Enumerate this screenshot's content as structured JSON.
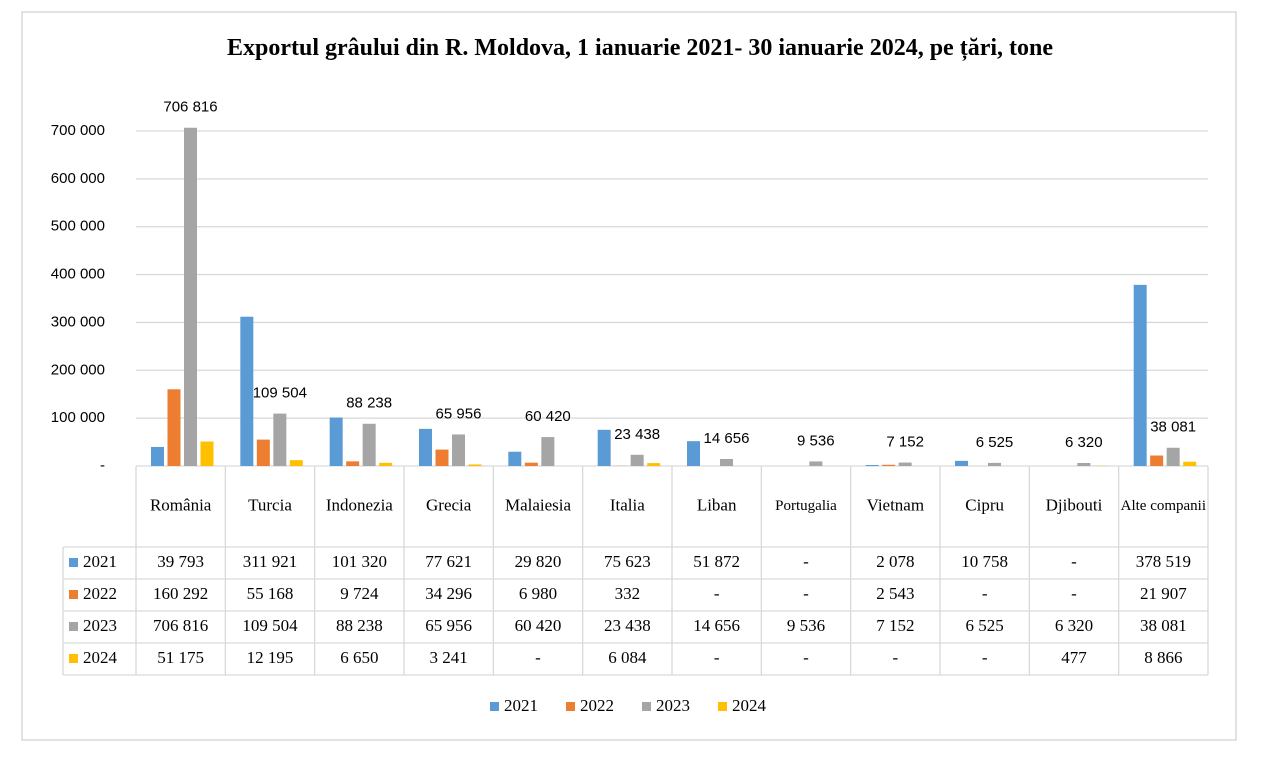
{
  "chart_data": {
    "type": "bar",
    "title": "Exportul grâului din R. Moldova, 1 ianuarie 2021- 30 ianuarie 2024, pe țări, tone",
    "categories": [
      "România",
      "Turcia",
      "Indonezia",
      "Grecia",
      "Malaiesia",
      "Italia",
      "Liban",
      "Portugalia",
      "Vietnam",
      "Cipru",
      "Djibouti",
      "Alte companii"
    ],
    "series": [
      {
        "name": "2021",
        "color": "#5b9bd5",
        "values": [
          39793,
          311921,
          101320,
          77621,
          29820,
          75623,
          51872,
          null,
          2078,
          10758,
          null,
          378519
        ],
        "value_labels": [
          "39 793",
          "311 921",
          "101 320",
          "77 621",
          "29 820",
          "75 623",
          "51 872",
          "-",
          "2 078",
          "10 758",
          "-",
          "378 519"
        ]
      },
      {
        "name": "2022",
        "color": "#ed7d31",
        "values": [
          160292,
          55168,
          9724,
          34296,
          6980,
          332,
          null,
          null,
          2543,
          null,
          null,
          21907
        ],
        "value_labels": [
          "160 292",
          "55 168",
          "9 724",
          "34 296",
          "6 980",
          "332",
          "-",
          "-",
          "2 543",
          "-",
          "-",
          "21 907"
        ]
      },
      {
        "name": "2023",
        "color": "#a5a5a5",
        "values": [
          706816,
          109504,
          88238,
          65956,
          60420,
          23438,
          14656,
          9536,
          7152,
          6525,
          6320,
          38081
        ],
        "value_labels": [
          "706 816",
          "109 504",
          "88 238",
          "65 956",
          "60 420",
          "23 438",
          "14 656",
          "9 536",
          "7 152",
          "6 525",
          "6 320",
          "38 081"
        ]
      },
      {
        "name": "2024",
        "color": "#ffc000",
        "values": [
          51175,
          12195,
          6650,
          3241,
          null,
          6084,
          null,
          null,
          null,
          null,
          477,
          8866
        ],
        "value_labels": [
          "51 175",
          "12 195",
          "6 650",
          "3 241",
          "-",
          "6 084",
          "-",
          "-",
          "-",
          "-",
          "477",
          "8 866"
        ]
      }
    ],
    "data_labels_series": 2,
    "ylim": [
      0,
      700000
    ],
    "yticks": [
      {
        "value": 0,
        "label": "-"
      },
      {
        "value": 100000,
        "label": "100 000"
      },
      {
        "value": 200000,
        "label": "200 000"
      },
      {
        "value": 300000,
        "label": "300 000"
      },
      {
        "value": 400000,
        "label": "400 000"
      },
      {
        "value": 500000,
        "label": "500 000"
      },
      {
        "value": 600000,
        "label": "600 000"
      },
      {
        "value": 700000,
        "label": "700 000"
      }
    ],
    "grid": true,
    "legend": "bottom"
  }
}
